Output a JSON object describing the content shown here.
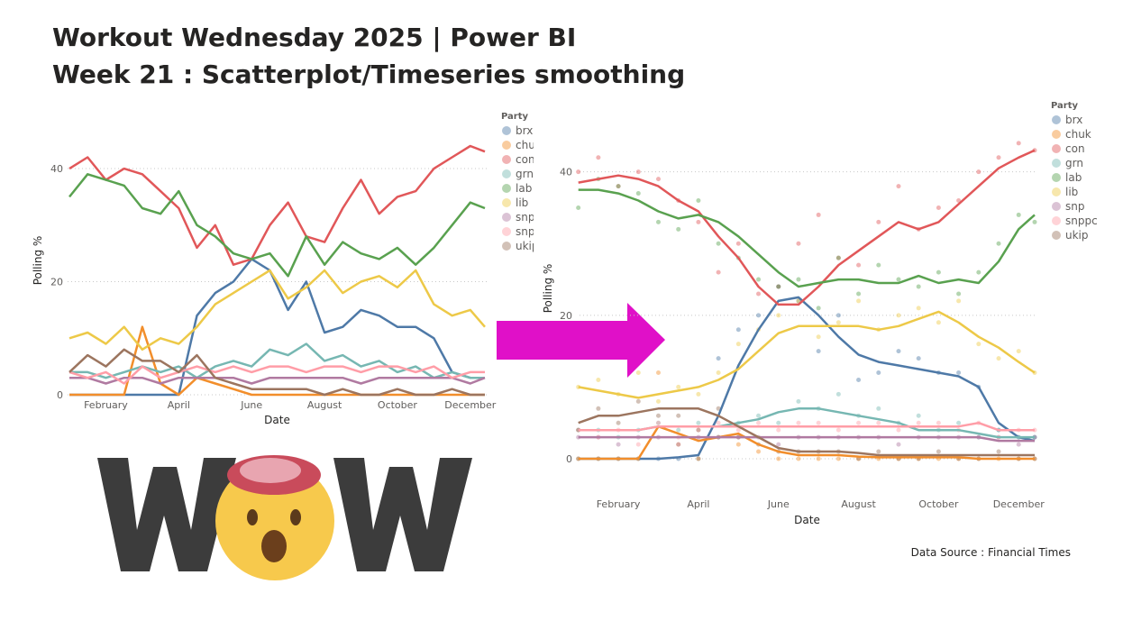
{
  "header": {
    "title_line1": "Workout Wednesday 2025 | Power BI",
    "title_line2": "Week 21 : Scatterplot/Timeseries smoothing"
  },
  "source": "Data Source : Financial Times",
  "chart_data": [
    {
      "type": "line",
      "x_label": "Date",
      "y_label": "Polling %",
      "legend_title": "Party",
      "grid": true,
      "x": [
        1,
        1.5,
        2,
        2.5,
        3,
        3.5,
        4,
        4.5,
        5,
        5.5,
        6,
        6.5,
        7,
        7.5,
        8,
        8.5,
        9,
        9.5,
        10,
        10.5,
        11,
        11.5,
        12,
        12.4
      ],
      "xlim": [
        0.95,
        12.45
      ],
      "xticks": [
        {
          "value": 2,
          "label": "February"
        },
        {
          "value": 4,
          "label": "April"
        },
        {
          "value": 6,
          "label": "June"
        },
        {
          "value": 8,
          "label": "August"
        },
        {
          "value": 10,
          "label": "October"
        },
        {
          "value": 12,
          "label": "December"
        }
      ],
      "ylim": [
        0,
        47.5
      ],
      "yticks": [
        0,
        20,
        40
      ],
      "series": [
        {
          "name": "brx",
          "color": "#4e79a7",
          "values": [
            0,
            0,
            0,
            0,
            0,
            0,
            0,
            14,
            18,
            20,
            24,
            22,
            15,
            20,
            11,
            12,
            15,
            14,
            12,
            12,
            10,
            4,
            3,
            3
          ]
        },
        {
          "name": "chuk",
          "color": "#f28e2b",
          "values": [
            0,
            0,
            0,
            0,
            12,
            2,
            0,
            3,
            2,
            1,
            0,
            0,
            0,
            0,
            0,
            0,
            0,
            0,
            0,
            0,
            0,
            0,
            0,
            0
          ]
        },
        {
          "name": "con",
          "color": "#e15759",
          "values": [
            40,
            42,
            38,
            40,
            39,
            36,
            33,
            26,
            30,
            23,
            24,
            30,
            34,
            28,
            27,
            33,
            38,
            32,
            35,
            36,
            40,
            42,
            44,
            43
          ]
        },
        {
          "name": "grn",
          "color": "#76b7b2",
          "values": [
            4,
            4,
            3,
            4,
            5,
            4,
            5,
            3,
            5,
            6,
            5,
            8,
            7,
            9,
            6,
            7,
            5,
            6,
            4,
            5,
            3,
            4,
            3,
            3
          ]
        },
        {
          "name": "lab",
          "color": "#59a14f",
          "values": [
            35,
            39,
            38,
            37,
            33,
            32,
            36,
            30,
            28,
            25,
            24,
            25,
            21,
            28,
            23,
            27,
            25,
            24,
            26,
            23,
            26,
            30,
            34,
            33
          ]
        },
        {
          "name": "lib",
          "color": "#edc948",
          "values": [
            10,
            11,
            9,
            12,
            8,
            10,
            9,
            12,
            16,
            18,
            20,
            22,
            17,
            19,
            22,
            18,
            20,
            21,
            19,
            22,
            16,
            14,
            15,
            12
          ]
        },
        {
          "name": "snp",
          "color": "#b07aa1",
          "values": [
            3,
            3,
            2,
            3,
            3,
            2,
            3,
            3,
            3,
            3,
            2,
            3,
            3,
            3,
            3,
            3,
            2,
            3,
            3,
            3,
            3,
            3,
            2,
            3
          ]
        },
        {
          "name": "snppc",
          "color": "#ff9da7",
          "values": [
            4,
            3,
            4,
            2,
            5,
            3,
            4,
            5,
            4,
            5,
            4,
            5,
            5,
            4,
            5,
            5,
            4,
            5,
            5,
            4,
            5,
            3,
            4,
            4
          ]
        },
        {
          "name": "ukip",
          "color": "#9c755f",
          "values": [
            4,
            7,
            5,
            8,
            6,
            6,
            4,
            7,
            3,
            2,
            1,
            1,
            1,
            1,
            0,
            1,
            0,
            0,
            1,
            0,
            0,
            1,
            0,
            0
          ]
        }
      ]
    },
    {
      "type": "line",
      "x_label": "Date",
      "y_label": "Polling %",
      "legend_title": "Party",
      "grid": true,
      "show_points": true,
      "x": [
        1,
        1.5,
        2,
        2.5,
        3,
        3.5,
        4,
        4.5,
        5,
        5.5,
        6,
        6.5,
        7,
        7.5,
        8,
        8.5,
        9,
        9.5,
        10,
        10.5,
        11,
        11.5,
        12,
        12.4
      ],
      "xlim": [
        1.03,
        12.4
      ],
      "xticks": [
        {
          "value": 2,
          "label": "February"
        },
        {
          "value": 4,
          "label": "April"
        },
        {
          "value": 6,
          "label": "June"
        },
        {
          "value": 8,
          "label": "August"
        },
        {
          "value": 10,
          "label": "October"
        },
        {
          "value": 12,
          "label": "December"
        }
      ],
      "ylim": [
        0,
        47.5
      ],
      "yticks": [
        0,
        20,
        40
      ],
      "series": [
        {
          "name": "brx",
          "color": "#4e79a7",
          "values": [
            0,
            0,
            0,
            0,
            0,
            0.2,
            0.5,
            6,
            13,
            18,
            22,
            22.5,
            20,
            17,
            14.5,
            13.5,
            13,
            12.5,
            12,
            11.5,
            10,
            5,
            3,
            2.5
          ]
        },
        {
          "name": "chuk",
          "color": "#f28e2b",
          "values": [
            0,
            0,
            0,
            0,
            4.5,
            3.5,
            2.5,
            3,
            3.5,
            2,
            1,
            0.5,
            0.5,
            0.5,
            0.3,
            0.2,
            0.2,
            0.2,
            0.2,
            0.2,
            0,
            0,
            0,
            0
          ]
        },
        {
          "name": "con",
          "color": "#e15759",
          "values": [
            38.5,
            39,
            39.5,
            39,
            38,
            36,
            34.5,
            31,
            28,
            24,
            21.5,
            21.5,
            24,
            27,
            29,
            31,
            33,
            32,
            33,
            35.5,
            38,
            40.5,
            42,
            43
          ]
        },
        {
          "name": "grn",
          "color": "#76b7b2",
          "values": [
            4,
            4,
            4,
            4,
            4.5,
            4.5,
            4.5,
            4.5,
            5,
            5.5,
            6.5,
            7,
            7,
            6.5,
            6,
            5.5,
            5,
            4,
            4,
            4,
            3.5,
            3,
            3,
            3
          ]
        },
        {
          "name": "lab",
          "color": "#59a14f",
          "values": [
            37.5,
            37.5,
            37,
            36,
            34.5,
            33.5,
            34,
            33,
            31,
            28.5,
            26,
            24,
            24.5,
            25,
            25,
            24.5,
            24.5,
            25.5,
            24.5,
            25,
            24.5,
            27.5,
            32,
            34
          ]
        },
        {
          "name": "lib",
          "color": "#edc948",
          "values": [
            10,
            9.5,
            9,
            8.5,
            9,
            9.5,
            10,
            11,
            12.5,
            15,
            17.5,
            18.5,
            18.5,
            18.5,
            18.5,
            18,
            18.5,
            19.5,
            20.5,
            19,
            17,
            15.5,
            13.5,
            12
          ]
        },
        {
          "name": "snp",
          "color": "#b07aa1",
          "values": [
            3,
            3,
            3,
            3,
            3,
            3,
            3,
            3,
            3,
            3,
            3,
            3,
            3,
            3,
            3,
            3,
            3,
            3,
            3,
            3,
            3,
            2.5,
            2.5,
            2.5
          ]
        },
        {
          "name": "snppc",
          "color": "#ff9da7",
          "values": [
            4,
            4,
            4,
            4,
            4.5,
            4.5,
            4.5,
            4.5,
            4.5,
            4.5,
            4.5,
            4.5,
            4.5,
            4.5,
            4.5,
            4.5,
            4.5,
            4.5,
            4.5,
            4.5,
            5,
            4,
            4,
            4
          ]
        },
        {
          "name": "ukip",
          "color": "#9c755f",
          "values": [
            5,
            6,
            6,
            6.5,
            7,
            7,
            7,
            6,
            4.5,
            3,
            1.5,
            1,
            1,
            1,
            0.8,
            0.5,
            0.5,
            0.5,
            0.5,
            0.5,
            0.5,
            0.5,
            0.5,
            0.5
          ]
        }
      ]
    }
  ]
}
